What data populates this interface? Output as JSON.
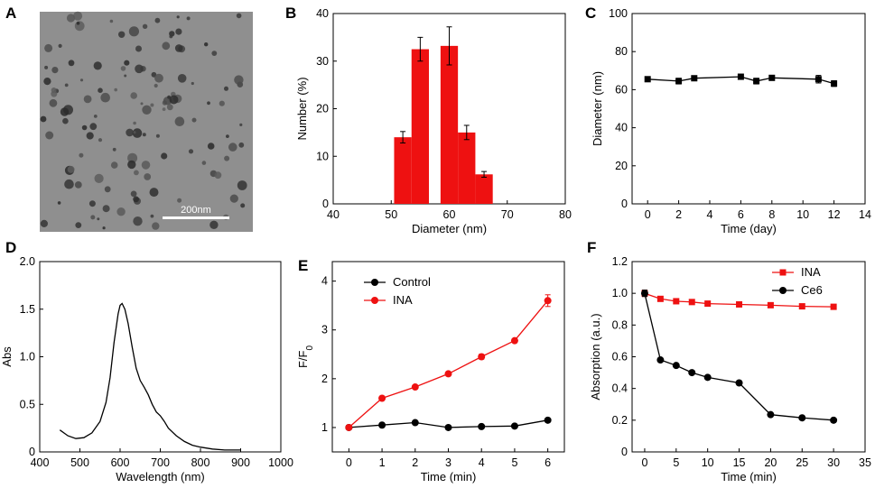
{
  "panels": {
    "A": {
      "label": "A",
      "scale_bar_label": "200nm"
    },
    "B": {
      "label": "B"
    },
    "C": {
      "label": "C"
    },
    "D": {
      "label": "D"
    },
    "E": {
      "label": "E"
    },
    "F": {
      "label": "F"
    }
  },
  "chart_data": [
    {
      "panel": "B",
      "type": "bar",
      "title": "",
      "xlabel": "Diameter (nm)",
      "ylabel": "Number (%)",
      "xlim": [
        40,
        80
      ],
      "ylim": [
        0,
        40
      ],
      "xticks": [
        40,
        50,
        60,
        70,
        80
      ],
      "yticks": [
        0,
        10,
        20,
        30,
        40
      ],
      "bar_width_units": 3,
      "color": "#ee1111",
      "categories": [
        52,
        55,
        60,
        63,
        66
      ],
      "values": [
        14,
        32.5,
        33.2,
        15,
        6.2
      ],
      "errors": [
        1.2,
        2.5,
        4.0,
        1.5,
        0.6
      ]
    },
    {
      "panel": "C",
      "type": "line",
      "title": "",
      "xlabel": "Time (day)",
      "ylabel": "Diameter (nm)",
      "xlim": [
        -1,
        14
      ],
      "ylim": [
        0,
        100
      ],
      "xticks": [
        0,
        2,
        4,
        6,
        8,
        10,
        12,
        14
      ],
      "yticks": [
        0,
        20,
        40,
        60,
        80,
        100
      ],
      "series": [
        {
          "name": "Diameter",
          "color": "#000000",
          "marker": "square",
          "x": [
            0,
            2,
            3,
            6,
            7,
            8,
            11,
            12
          ],
          "y": [
            65.5,
            64.5,
            66,
            66.8,
            64.5,
            66.2,
            65.5,
            63.2
          ],
          "errors": [
            1.0,
            1.5,
            1.2,
            1.0,
            1.5,
            0.8,
            2.0,
            1.5
          ]
        }
      ]
    },
    {
      "panel": "D",
      "type": "line",
      "title": "",
      "xlabel": "Wavelength  (nm)",
      "ylabel": "Abs",
      "xlim": [
        400,
        1000
      ],
      "ylim": [
        0,
        2.0
      ],
      "xticks": [
        400,
        500,
        600,
        700,
        800,
        900,
        1000
      ],
      "yticks": [
        0,
        0.5,
        1.0,
        1.5,
        2.0
      ],
      "ytick_labels": [
        "0",
        "0.5",
        "1.0",
        "1.5",
        "2.0"
      ],
      "series": [
        {
          "name": "Abs",
          "color": "#000000",
          "x": [
            450,
            470,
            490,
            510,
            530,
            550,
            565,
            575,
            585,
            595,
            600,
            605,
            612,
            620,
            630,
            640,
            650,
            660,
            670,
            680,
            690,
            700,
            710,
            720,
            740,
            760,
            780,
            800,
            830,
            860,
            900
          ],
          "y": [
            0.23,
            0.17,
            0.14,
            0.15,
            0.2,
            0.32,
            0.52,
            0.78,
            1.15,
            1.45,
            1.54,
            1.56,
            1.5,
            1.35,
            1.1,
            0.88,
            0.75,
            0.68,
            0.6,
            0.5,
            0.42,
            0.38,
            0.32,
            0.25,
            0.17,
            0.11,
            0.07,
            0.05,
            0.03,
            0.02,
            0.02
          ]
        }
      ]
    },
    {
      "panel": "E",
      "type": "line",
      "title": "",
      "xlabel": "Time (min)",
      "ylabel": "F/F0",
      "xlim": [
        -0.5,
        6.5
      ],
      "ylim": [
        0.5,
        4.4
      ],
      "xticks": [
        0,
        1,
        2,
        3,
        4,
        5,
        6
      ],
      "yticks": [
        1,
        2,
        3,
        4
      ],
      "legend_position": "top-left",
      "series": [
        {
          "name": "Control",
          "color": "#000000",
          "marker": "circle",
          "x": [
            0,
            1,
            2,
            3,
            4,
            5,
            6
          ],
          "y": [
            1.0,
            1.05,
            1.1,
            1.0,
            1.02,
            1.03,
            1.15
          ],
          "errors": [
            0.02,
            0.03,
            0.03,
            0.02,
            0.02,
            0.02,
            0.03
          ]
        },
        {
          "name": "INA",
          "color": "#ee1111",
          "marker": "circle",
          "x": [
            0,
            1,
            2,
            3,
            4,
            5,
            6
          ],
          "y": [
            1.0,
            1.6,
            1.83,
            2.1,
            2.45,
            2.78,
            3.6
          ],
          "errors": [
            0.02,
            0.03,
            0.03,
            0.03,
            0.05,
            0.04,
            0.12
          ]
        }
      ]
    },
    {
      "panel": "F",
      "type": "line",
      "title": "",
      "xlabel": "Time (min)",
      "ylabel": "Absorption (a.u.)",
      "xlim": [
        -2,
        35
      ],
      "ylim": [
        0,
        1.2
      ],
      "xticks": [
        0,
        5,
        10,
        15,
        20,
        25,
        30,
        35
      ],
      "yticks": [
        0,
        0.2,
        0.4,
        0.6,
        0.8,
        1.0,
        1.2
      ],
      "ytick_labels": [
        "0",
        "0.2",
        "0.4",
        "0.6",
        "0.8",
        "1.0",
        "1.2"
      ],
      "legend_position": "top-right",
      "series": [
        {
          "name": "INA",
          "color": "#ee1111",
          "marker": "square",
          "x": [
            0,
            2.5,
            5,
            7.5,
            10,
            15,
            20,
            25,
            30
          ],
          "y": [
            1.0,
            0.965,
            0.95,
            0.945,
            0.935,
            0.93,
            0.925,
            0.918,
            0.915
          ],
          "errors": [
            0.02,
            0.01,
            0.01,
            0.01,
            0.01,
            0.01,
            0.01,
            0.01,
            0.01
          ]
        },
        {
          "name": "Ce6",
          "color": "#000000",
          "marker": "circle",
          "x": [
            0,
            2.5,
            5,
            7.5,
            10,
            15,
            20,
            25,
            30
          ],
          "y": [
            1.0,
            0.58,
            0.545,
            0.5,
            0.47,
            0.435,
            0.235,
            0.215,
            0.2
          ],
          "errors": [
            0.02,
            0.01,
            0.01,
            0.01,
            0.01,
            0.01,
            0.01,
            0.01,
            0.01
          ]
        }
      ]
    }
  ]
}
